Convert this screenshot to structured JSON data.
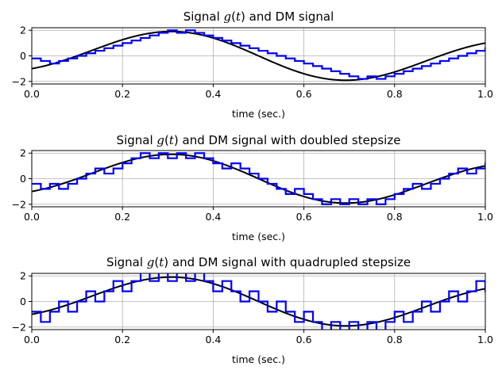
{
  "chart_data": [
    {
      "type": "line",
      "title_prefix": "Signal ",
      "title_var": "g",
      "title_arg": "(t)",
      "title_suffix": " and DM signal",
      "xlabel": "time (sec.)",
      "ylabel": "",
      "xlim": [
        0,
        1
      ],
      "ylim": [
        -2.2,
        2.2
      ],
      "xticks": [
        "0.0",
        "0.2",
        "0.4",
        "0.6",
        "0.8",
        "1.0"
      ],
      "yticks": [
        "2",
        "0",
        "−2"
      ],
      "grid": true,
      "signal_expr": "sin(2πt) − cos(3πt)",
      "sample_period": 0.02,
      "stepsize": 0.2,
      "series": [
        {
          "color": "#000000",
          "values": "g(t)"
        },
        {
          "color": "#0000ff",
          "values": "DM staircase, step 0.2"
        }
      ]
    },
    {
      "type": "line",
      "title_prefix": "Signal ",
      "title_var": "g",
      "title_arg": "(t)",
      "title_suffix": " and DM signal with doubled stepsize",
      "xlabel": "time (sec.)",
      "ylabel": "",
      "xlim": [
        0,
        1
      ],
      "ylim": [
        -2.2,
        2.2
      ],
      "xticks": [
        "0.0",
        "0.2",
        "0.4",
        "0.6",
        "0.8",
        "1.0"
      ],
      "yticks": [
        "2",
        "0",
        "−2"
      ],
      "grid": true,
      "signal_expr": "sin(2πt) − cos(3πt)",
      "sample_period": 0.02,
      "stepsize": 0.4,
      "series": [
        {
          "color": "#000000",
          "values": "g(t)"
        },
        {
          "color": "#0000ff",
          "values": "DM staircase, step 0.4"
        }
      ]
    },
    {
      "type": "line",
      "title_prefix": "Signal ",
      "title_var": "g",
      "title_arg": "(t)",
      "title_suffix": " and DM signal with quadrupled stepsize",
      "xlabel": "time (sec.)",
      "ylabel": "",
      "xlim": [
        0,
        1
      ],
      "ylim": [
        -2.2,
        2.2
      ],
      "xticks": [
        "0.0",
        "0.2",
        "0.4",
        "0.6",
        "0.8",
        "1.0"
      ],
      "yticks": [
        "2",
        "0",
        "−2"
      ],
      "grid": true,
      "signal_expr": "sin(2πt) − cos(3πt)",
      "sample_period": 0.02,
      "stepsize": 0.8,
      "series": [
        {
          "color": "#000000",
          "values": "g(t)"
        },
        {
          "color": "#0000ff",
          "values": "DM staircase, step 0.8"
        }
      ]
    }
  ]
}
